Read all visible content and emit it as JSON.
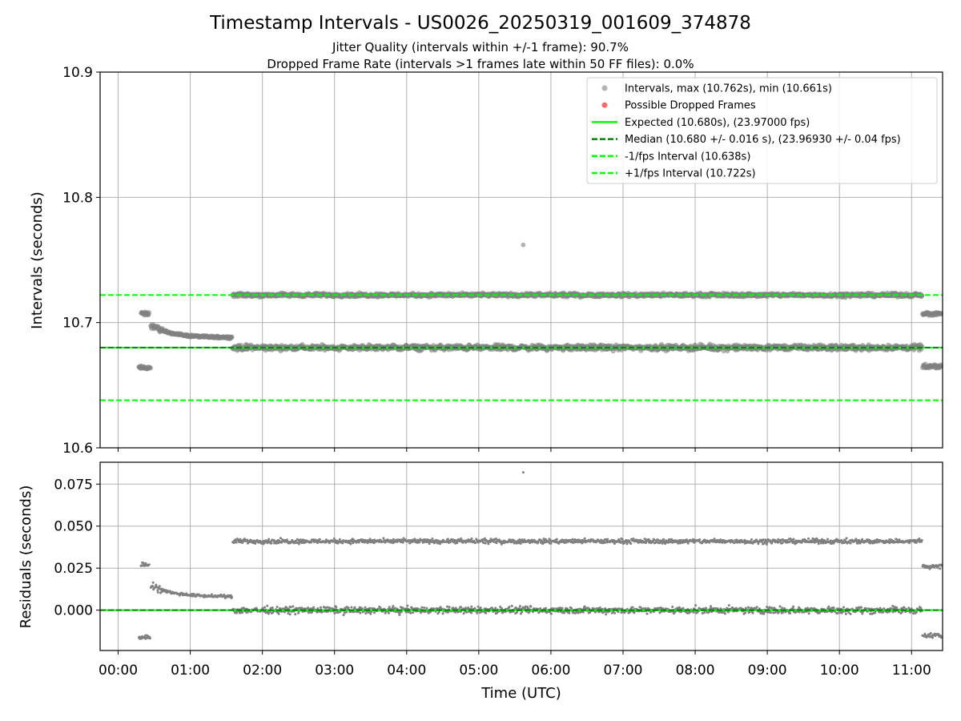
{
  "title": "Timestamp Intervals - US0026_20250319_001609_374878",
  "subtitle_1": "Jitter Quality (intervals within +/-1 frame): 90.7%",
  "subtitle_2": "Dropped Frame Rate (intervals >1 frames late within 50 FF files): 0.0%",
  "colors": {
    "points": "#808080",
    "dropped": "#ff0000",
    "expected": "#00ff00",
    "median": "#008000",
    "fps_bounds": "#00ff00",
    "grid": "#b0b0b0"
  },
  "chart_data": [
    {
      "type": "scatter",
      "panel": "top",
      "xlabel": "",
      "ylabel": "Intervals (seconds)",
      "ylim": [
        10.6,
        10.9
      ],
      "yticks": [
        "10.6",
        "10.7",
        "10.8",
        "10.9"
      ],
      "xlim_hours": [
        -0.25,
        11.43
      ],
      "grid": true,
      "legend_position": "top-right",
      "legend": [
        {
          "label": "Intervals, max (10.762s), min (10.661s)",
          "kind": "marker",
          "color": "#808080",
          "alpha": 0.6
        },
        {
          "label": "Possible Dropped Frames",
          "kind": "marker",
          "color": "#ff0000",
          "alpha": 0.6
        },
        {
          "label": "Expected (10.680s), (23.97000 fps)",
          "kind": "solid",
          "color": "#00ff00"
        },
        {
          "label": "Median (10.680 +/- 0.016 s), (23.96930 +/- 0.04 fps)",
          "kind": "dashed",
          "color": "#008000"
        },
        {
          "label": "-1/fps Interval (10.638s)",
          "kind": "dashed",
          "color": "#00ff00"
        },
        {
          "label": "+1/fps Interval (10.722s)",
          "kind": "dashed",
          "color": "#00ff00"
        }
      ],
      "reference_lines": {
        "expected": 10.68,
        "median": 10.68,
        "minus_one_fps": 10.638,
        "plus_one_fps": 10.722
      },
      "series": [
        {
          "name": "Intervals",
          "segments": [
            {
              "start": "00:17",
              "end": "00:27",
              "level": 10.664,
              "spread": 0.002
            },
            {
              "start": "00:19",
              "end": "00:26",
              "level": 10.707,
              "spread": 0.002
            },
            {
              "start": "00:27",
              "end": "01:35",
              "pattern": "decay",
              "from": 10.698,
              "to": 10.688
            },
            {
              "start": "01:35",
              "end": "11:09",
              "level": 10.68,
              "spread": 0.003
            },
            {
              "start": "01:35",
              "end": "11:09",
              "level": 10.722,
              "spread": 0.002
            },
            {
              "start": "11:09",
              "end": "11:25",
              "level": 10.665,
              "spread": 0.002
            },
            {
              "start": "11:09",
              "end": "11:25",
              "level": 10.707,
              "spread": 0.002
            }
          ]
        },
        {
          "name": "Outlier",
          "points": [
            {
              "x": "05:37",
              "y": 10.762
            }
          ]
        }
      ]
    },
    {
      "type": "scatter",
      "panel": "bottom",
      "xlabel": "Time (UTC)",
      "ylabel": "Residuals (seconds)",
      "ylim": [
        -0.024,
        0.088
      ],
      "yticks": [
        "0.000",
        "0.025",
        "0.050",
        "0.075"
      ],
      "xlim_hours": [
        -0.25,
        11.43
      ],
      "xticks": [
        "00:00",
        "01:00",
        "02:00",
        "03:00",
        "04:00",
        "05:00",
        "06:00",
        "07:00",
        "08:00",
        "09:00",
        "10:00",
        "11:00"
      ],
      "grid": true,
      "reference_lines": {
        "expected": 0.0,
        "median": 0.0
      },
      "series": [
        {
          "name": "Residuals",
          "segments": [
            {
              "start": "00:17",
              "end": "00:27",
              "level": -0.016,
              "spread": 0.002
            },
            {
              "start": "00:19",
              "end": "00:26",
              "level": 0.027,
              "spread": 0.002
            },
            {
              "start": "00:27",
              "end": "01:35",
              "pattern": "decay",
              "from": 0.015,
              "to": 0.008
            },
            {
              "start": "01:35",
              "end": "11:09",
              "level": 0.0,
              "spread": 0.003
            },
            {
              "start": "01:35",
              "end": "11:09",
              "level": 0.041,
              "spread": 0.002
            },
            {
              "start": "11:09",
              "end": "11:25",
              "level": -0.015,
              "spread": 0.002
            },
            {
              "start": "11:09",
              "end": "11:25",
              "level": 0.026,
              "spread": 0.002
            }
          ]
        },
        {
          "name": "Outlier",
          "points": [
            {
              "x": "05:37",
              "y": 0.082
            }
          ]
        }
      ]
    }
  ]
}
